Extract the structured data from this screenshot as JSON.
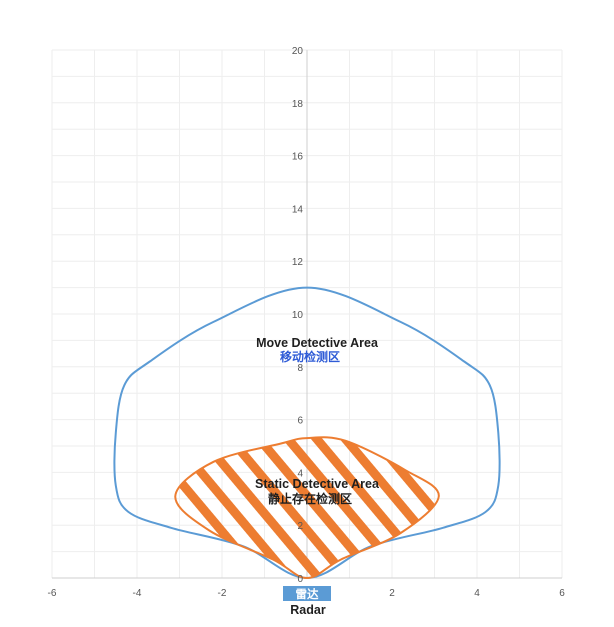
{
  "chart_data": {
    "type": "area",
    "x_ticks": [
      "-6",
      "-4",
      "-2",
      "0",
      "2",
      "4",
      "6"
    ],
    "y_ticks": [
      "0",
      "2",
      "4",
      "6",
      "8",
      "10",
      "12",
      "14",
      "16",
      "18",
      "20"
    ],
    "xlim": [
      -6,
      6
    ],
    "ylim": [
      0,
      20
    ],
    "grid": true,
    "zones": [
      {
        "label_en": "Move Detective Area",
        "label_zh": "移动检测区",
        "color": "#5b9bd5",
        "fill": "none",
        "boundary": [
          [
            0,
            0
          ],
          [
            -1.5,
            1.2
          ],
          [
            -3.2,
            1.9
          ],
          [
            -4.2,
            2.5
          ],
          [
            -4.5,
            3.5
          ],
          [
            -4.5,
            5.5
          ],
          [
            -4.3,
            7.3
          ],
          [
            -3.7,
            8.2
          ],
          [
            -2.2,
            9.7
          ],
          [
            0,
            11
          ],
          [
            2.2,
            9.7
          ],
          [
            3.7,
            8.2
          ],
          [
            4.3,
            7.3
          ],
          [
            4.5,
            5.5
          ],
          [
            4.5,
            3.5
          ],
          [
            4.2,
            2.5
          ],
          [
            3.2,
            1.9
          ],
          [
            1.5,
            1.2
          ],
          [
            0,
            0
          ]
        ]
      },
      {
        "label_en": "Static Detective Area",
        "label_zh": "静止存在检测区",
        "color": "#ed7d31",
        "fill": "hatch",
        "boundary": [
          [
            0,
            0
          ],
          [
            -0.8,
            0.7
          ],
          [
            -2.3,
            1.8
          ],
          [
            -3.1,
            3.1
          ],
          [
            -2.2,
            4.4
          ],
          [
            -0.6,
            5.1
          ],
          [
            0,
            5.3
          ],
          [
            0.9,
            5.2
          ],
          [
            2.3,
            4.1
          ],
          [
            3.1,
            3.1
          ],
          [
            2.2,
            1.7
          ],
          [
            0.8,
            0.7
          ],
          [
            0,
            0
          ]
        ]
      }
    ]
  },
  "radar": {
    "label_zh": "雷达",
    "label_en": "Radar",
    "color": "#5b9bd5"
  }
}
